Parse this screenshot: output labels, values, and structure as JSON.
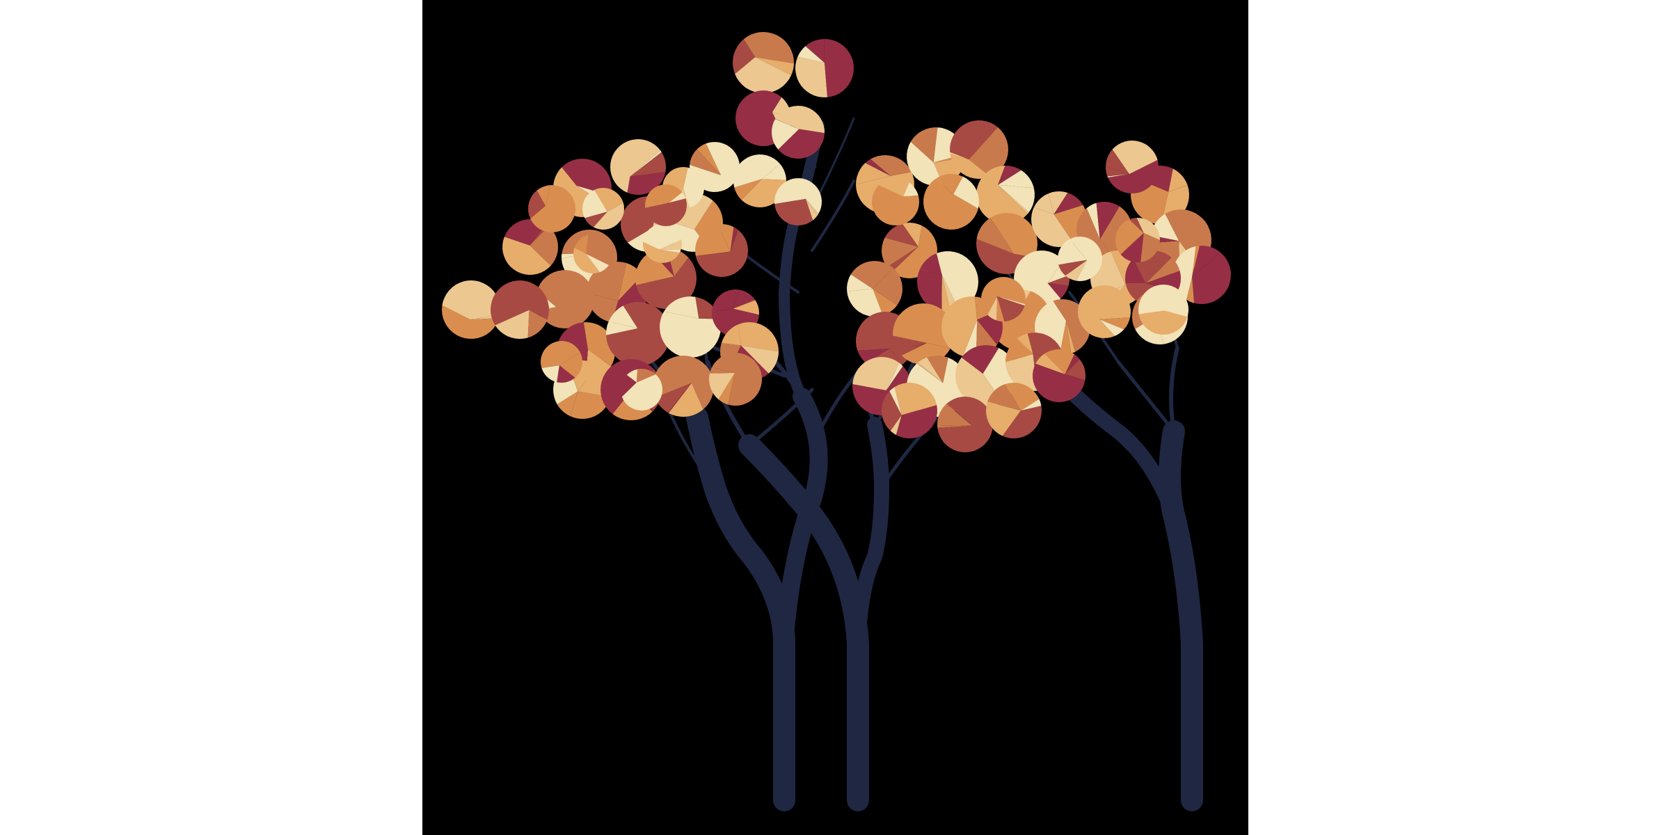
{
  "scene": {
    "description_free": true,
    "background_color": "#000000",
    "margin_color": "#ffffff",
    "trunk_color": "#1f2742",
    "palette": [
      "#f3e3b8",
      "#ecc78f",
      "#e7ad6b",
      "#d98e4f",
      "#c97a4c",
      "#a84a44",
      "#962f45"
    ],
    "tree_count": 3
  }
}
